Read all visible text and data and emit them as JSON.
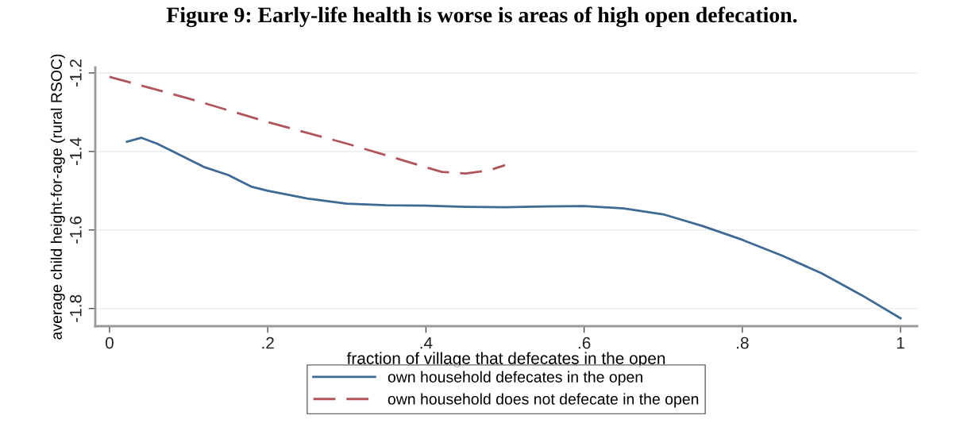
{
  "chart_data": {
    "type": "line",
    "title": "Figure 9: Early-life health is worse is areas of high open defecation.",
    "xlabel": "fraction of village that defecates in the open",
    "ylabel": "average child height-for-age (rural RSOC)",
    "xlim": [
      -0.018,
      1.021
    ],
    "ylim": [
      -1.845,
      -1.186
    ],
    "xticks": [
      {
        "value": 0,
        "label": "0"
      },
      {
        "value": 0.2,
        "label": ".2"
      },
      {
        "value": 0.4,
        "label": ".4"
      },
      {
        "value": 0.6,
        "label": ".6"
      },
      {
        "value": 0.8,
        "label": ".8"
      },
      {
        "value": 1,
        "label": "1"
      }
    ],
    "yticks": [
      -1.8,
      -1.6,
      -1.4,
      -1.2
    ],
    "grid": "y",
    "legend": "bottom",
    "series": [
      {
        "name": "own household defecates in the open",
        "color": "#3e6a94",
        "line_style": "solid",
        "x": [
          0.022,
          0.04,
          0.06,
          0.08,
          0.1,
          0.12,
          0.15,
          0.18,
          0.2,
          0.25,
          0.3,
          0.35,
          0.4,
          0.45,
          0.5,
          0.55,
          0.6,
          0.65,
          0.7,
          0.75,
          0.8,
          0.85,
          0.9,
          0.95,
          1.0
        ],
        "values": [
          -1.375,
          -1.365,
          -1.38,
          -1.4,
          -1.42,
          -1.44,
          -1.46,
          -1.49,
          -1.5,
          -1.52,
          -1.533,
          -1.537,
          -1.538,
          -1.541,
          -1.542,
          -1.54,
          -1.539,
          -1.545,
          -1.56,
          -1.59,
          -1.625,
          -1.665,
          -1.71,
          -1.765,
          -1.825
        ]
      },
      {
        "name": "own household does not defecate in the open",
        "color": "#b0555b",
        "line_style": "dashed",
        "x": [
          0,
          0.1,
          0.2,
          0.3,
          0.35,
          0.4,
          0.42,
          0.45,
          0.48,
          0.5
        ],
        "values": [
          -1.21,
          -1.265,
          -1.325,
          -1.38,
          -1.41,
          -1.44,
          -1.452,
          -1.456,
          -1.448,
          -1.435
        ]
      }
    ]
  }
}
